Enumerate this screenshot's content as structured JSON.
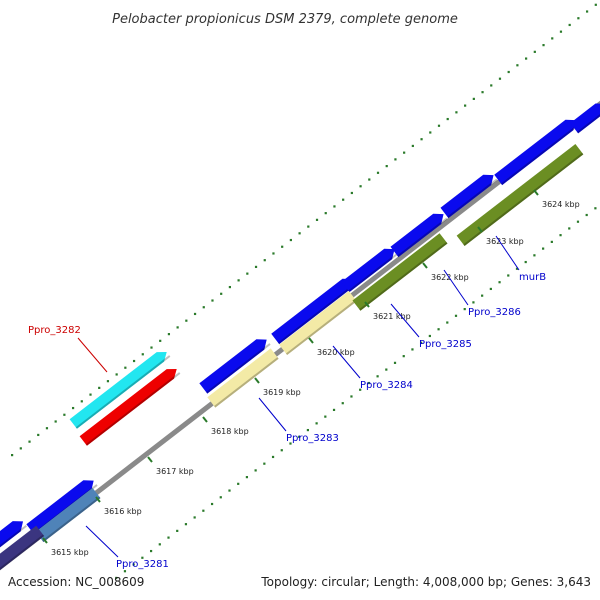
{
  "title": "Pelobacter propionicus DSM 2379, complete genome",
  "footer": {
    "accession": "Accession: NC_008609",
    "summary": "Topology: circular; Length: 4,008,000 bp; Genes: 3,643"
  },
  "kbp_labels": [
    "3615 kbp",
    "3616 kbp",
    "3617 kbp",
    "3618 kbp",
    "3619 kbp",
    "3620 kbp",
    "3621 kbp",
    "3622 kbp",
    "3623 kbp",
    "3624 kbp"
  ],
  "gene_labels": [
    {
      "name": "Ppro_3281",
      "color": "#0000cc"
    },
    {
      "name": "Ppro_3282",
      "color": "#cc0000"
    },
    {
      "name": "Ppro_3283",
      "color": "#0000cc"
    },
    {
      "name": "Ppro_3284",
      "color": "#0000cc"
    },
    {
      "name": "Ppro_3285",
      "color": "#0000cc"
    },
    {
      "name": "Ppro_3286",
      "color": "#0000cc"
    },
    {
      "name": "murB",
      "color": "#0000cc"
    }
  ],
  "colors": {
    "backbone": "#8a8a8a",
    "forward_gene": "#0a0aee",
    "reverse_gene": "#0a0aee",
    "cyan_gene": "#22e6f0",
    "red_gene": "#ee0000",
    "pale_gene": "#f3eaa6",
    "olive_gene": "#6b8e23",
    "steel_gene": "#4f83b8",
    "indigo_gene": "#3b3580",
    "tick": "#2a7a2a"
  }
}
